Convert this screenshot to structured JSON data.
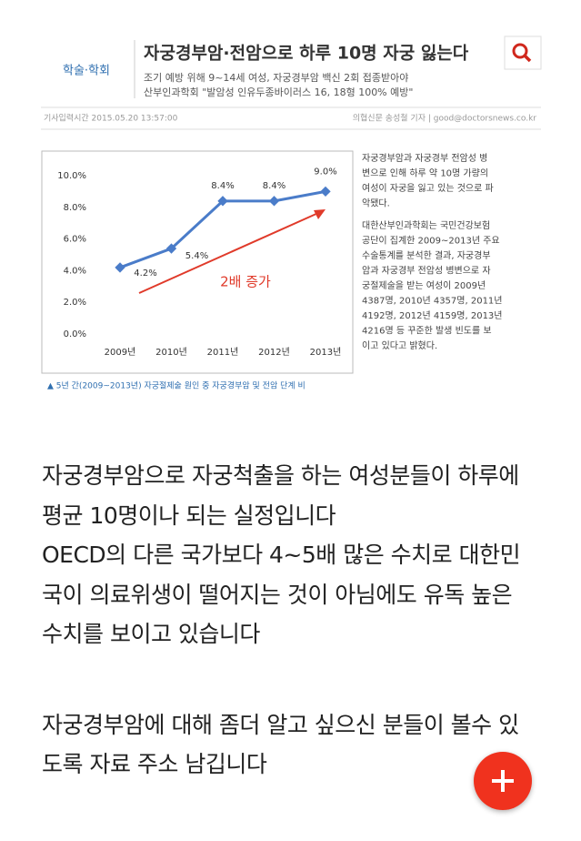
{
  "clipping": {
    "section": "학술·학회",
    "headline": "자궁경부암·전암으로 하루 10명 자궁 잃는다",
    "subheads": [
      "조기 예방 위해 9~14세 여성, 자궁경부암 백신 2회 접종받아야",
      "산부인과학회 \"발암성 인유두종바이러스 16, 18형 100% 예방\""
    ],
    "meta_left": "기사입력시간 2015.05.20 13:57:00",
    "meta_right": "의협신문 송성철 기자 | good@doctorsnews.co.kr",
    "caption": "▲ 5년 간(2009~2013년) 자궁절제술 원인 중 자궁경부암 및 전암 단계 비",
    "article": [
      [
        "자궁경부암과 자궁경부 전암성 병",
        "변으로 인해 하루 약 10명 가량의",
        "여성이 자궁을 잃고 있는 것으로 파",
        "악됐다."
      ],
      [
        "대한산부인과학회는 국민건강보험",
        "공단이 집계한 2009~2013년 주요",
        "수술통계를 분석한 결과, 자궁경부",
        "암과 자궁경부 전암성 병변으로 자",
        "궁절제술을 받는 여성이 2009년",
        "4387명, 2010년 4357명, 2011년",
        "4192명, 2012년 4159명, 2013년",
        "4216명 등 꾸준한 발생 빈도를 보",
        "이고 있다고 밝혔다."
      ]
    ]
  },
  "chart_data": {
    "type": "line",
    "categories": [
      "2009년",
      "2010년",
      "2011년",
      "2012년",
      "2013년"
    ],
    "values": [
      4.2,
      5.4,
      8.4,
      8.4,
      9.0
    ],
    "value_labels": [
      "4.2%",
      "5.4%",
      "8.4%",
      "8.4%",
      "9.0%"
    ],
    "color": "#4a7cc9",
    "ylim": [
      0,
      10
    ],
    "yticks": [
      {
        "value": 0,
        "label": "0.0%"
      },
      {
        "value": 2,
        "label": "2.0%"
      },
      {
        "value": 4,
        "label": "4.0%"
      },
      {
        "value": 6,
        "label": "6.0%"
      },
      {
        "value": 8,
        "label": "8.0%"
      },
      {
        "value": 10,
        "label": "10.0%"
      }
    ],
    "annotation": "2배 증가"
  },
  "body": {
    "paragraphs": [
      [
        "자궁경부암으로 자궁척출을 하는 여성분들이 하루에",
        "평균 10명이나 되는 실정입니다",
        "OECD의 다른 국가보다 4~5배 많은 수치로 대한민",
        "국이 의료위생이 떨어지는 것이 아님에도 유독 높은",
        "수치를 보이고 있습니다"
      ],
      [
        "자궁경부암에 대해 좀더 알고 싶으신 분들이 볼수 있",
        "도록 자료 주소 남깁니다"
      ]
    ]
  }
}
